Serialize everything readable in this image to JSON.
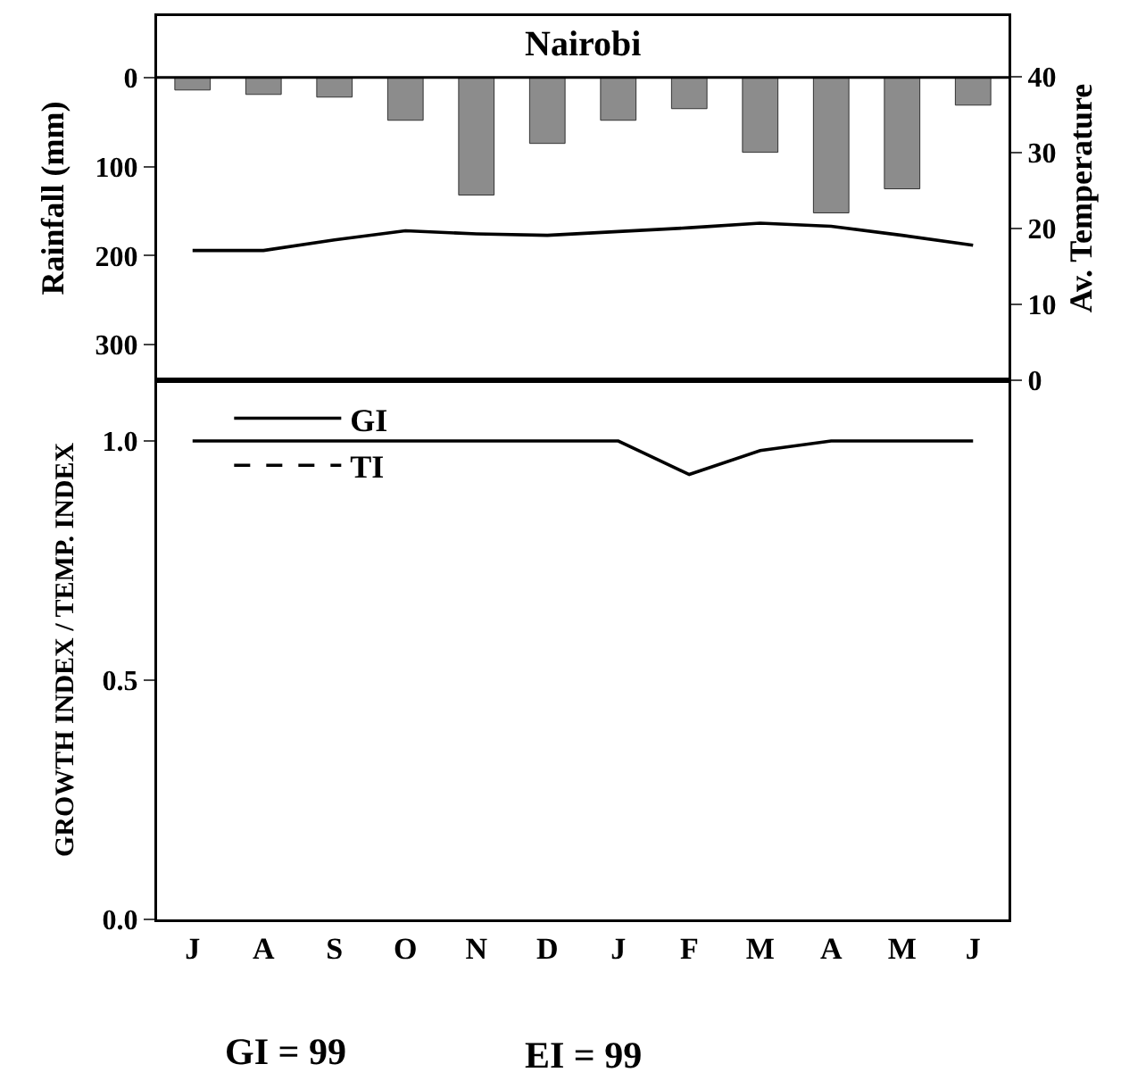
{
  "chart_data": [
    {
      "type": "bar",
      "title": "Nairobi",
      "categories": [
        null,
        null,
        null,
        null,
        null,
        null,
        null,
        null,
        null,
        null,
        null,
        null
      ],
      "ylabel": "Rainfall (mm)",
      "y2label": "Av. Temperature",
      "series": [
        {
          "color": "#8c8c8c",
          "values": [
            14,
            19,
            22,
            48,
            132,
            74,
            48,
            35,
            84,
            152,
            125,
            31
          ]
        },
        {
          "type": "line",
          "axis": "y2",
          "color": "#000000",
          "values": [
            17.1,
            17.1,
            18.5,
            19.7,
            19.3,
            19.1,
            19.6,
            20.1,
            20.7,
            20.3,
            19.1,
            17.8
          ]
        }
      ],
      "ylim": [
        340,
        -69
      ],
      "yticks": [
        0,
        100,
        200,
        300
      ],
      "ref_lines": [
        {
          "axis": "y",
          "value": 0,
          "color": "#000000"
        }
      ],
      "y2lim": [
        0,
        48
      ],
      "y2ticks": [
        0,
        10,
        20,
        30,
        40
      ],
      "tick_labels": "y",
      "grid": false,
      "legend": false
    },
    {
      "type": "line",
      "categories": [
        "J",
        "A",
        "S",
        "O",
        "N",
        "D",
        "J",
        "F",
        "M",
        "A",
        "M",
        "J"
      ],
      "ylabel": "GROWTH INDEX / TEMP. INDEX",
      "series": [
        {
          "name": "GI",
          "color": "#000000",
          "line_style": "solid",
          "values": [
            1,
            1,
            1,
            1,
            1,
            1,
            1,
            0.93,
            0.98,
            1,
            1,
            1
          ]
        },
        {
          "name": "TI",
          "color": "#000000",
          "line_style": "dashed",
          "values": [
            null,
            null,
            null,
            null,
            null,
            null,
            null,
            null,
            null,
            null,
            null,
            null
          ]
        }
      ],
      "ylim": [
        0,
        1.127
      ],
      "yticks": [
        {
          "value": 0,
          "label": "0.0"
        },
        {
          "value": 0.5,
          "label": "0.5"
        },
        {
          "value": 1,
          "label": "1.0"
        }
      ],
      "grid": false,
      "legend": "top",
      "marker": "none",
      "annotations": [
        "GI = 99",
        "EI = 99"
      ]
    }
  ]
}
